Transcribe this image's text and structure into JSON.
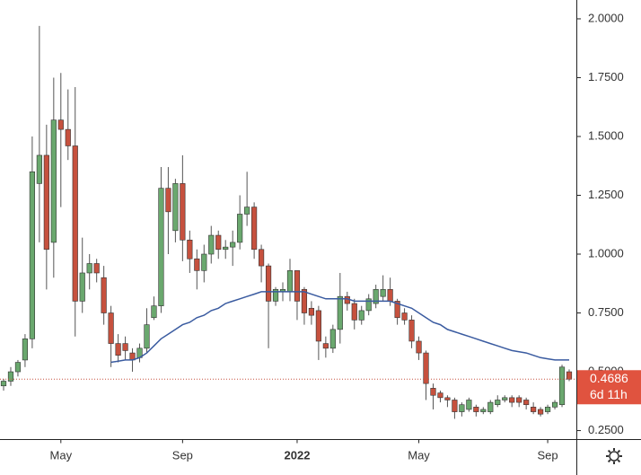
{
  "chart_data": {
    "type": "candlestick",
    "categories": [
      null,
      null,
      null,
      null,
      null,
      null,
      null,
      null,
      "May",
      null,
      null,
      null,
      null,
      null,
      null,
      null,
      null,
      null,
      null,
      null,
      null,
      null,
      null,
      null,
      null,
      "Sep",
      null,
      null,
      null,
      null,
      null,
      null,
      null,
      null,
      null,
      null,
      null,
      null,
      null,
      null,
      null,
      "2022",
      null,
      null,
      null,
      null,
      null,
      null,
      null,
      null,
      null,
      null,
      null,
      null,
      null,
      null,
      null,
      null,
      "May",
      null,
      null,
      null,
      null,
      null,
      null,
      null,
      null,
      null,
      null,
      null,
      null,
      null,
      null,
      null,
      null,
      null,
      "Sep",
      null,
      null,
      null
    ],
    "open": [
      0.44,
      0.46,
      0.5,
      0.55,
      0.64,
      1.3,
      1.42,
      1.05,
      1.57,
      1.53,
      1.46,
      0.8,
      0.92,
      0.96,
      0.9,
      0.75,
      0.62,
      0.62,
      0.58,
      0.56,
      0.6,
      0.73,
      0.78,
      1.28,
      1.1,
      1.3,
      1.06,
      0.98,
      0.93,
      1.0,
      1.08,
      1.02,
      1.03,
      1.05,
      1.17,
      1.2,
      1.02,
      0.95,
      0.8,
      0.84,
      0.84,
      0.93,
      0.85,
      0.77,
      0.76,
      0.62,
      0.6,
      0.68,
      0.82,
      0.79,
      0.72,
      0.76,
      0.79,
      0.82,
      0.85,
      0.8,
      0.75,
      0.72,
      0.63,
      0.58,
      0.43,
      0.41,
      0.39,
      0.38,
      0.33,
      0.34,
      0.35,
      0.33,
      0.33,
      0.36,
      0.38,
      0.39,
      0.39,
      0.38,
      0.35,
      0.34,
      0.33,
      0.35,
      0.36,
      0.5
    ],
    "high": [
      0.47,
      0.52,
      0.55,
      0.66,
      1.5,
      1.97,
      1.55,
      1.75,
      1.77,
      1.7,
      1.71,
      1.07,
      1.0,
      0.98,
      0.95,
      0.78,
      0.66,
      0.65,
      0.6,
      0.62,
      0.77,
      0.82,
      1.37,
      1.37,
      1.32,
      1.42,
      1.1,
      1.02,
      1.04,
      1.12,
      1.1,
      1.06,
      1.1,
      1.25,
      1.35,
      1.22,
      1.04,
      0.96,
      0.86,
      0.88,
      0.98,
      0.93,
      0.86,
      0.8,
      0.78,
      0.65,
      0.7,
      0.92,
      0.84,
      0.81,
      0.78,
      0.83,
      0.87,
      0.91,
      0.9,
      0.81,
      0.77,
      0.74,
      0.65,
      0.59,
      0.45,
      0.42,
      0.4,
      0.39,
      0.37,
      0.39,
      0.36,
      0.35,
      0.38,
      0.4,
      0.4,
      0.4,
      0.4,
      0.39,
      0.37,
      0.35,
      0.36,
      0.38,
      0.53,
      0.51
    ],
    "low": [
      0.42,
      0.44,
      0.48,
      0.52,
      0.6,
      1.05,
      0.85,
      0.9,
      1.2,
      1.4,
      0.65,
      0.75,
      0.85,
      0.88,
      0.7,
      0.52,
      0.54,
      0.55,
      0.5,
      0.54,
      0.58,
      0.72,
      0.75,
      1.0,
      1.05,
      0.97,
      0.92,
      0.85,
      0.88,
      0.96,
      0.98,
      0.98,
      0.95,
      1.02,
      1.12,
      0.98,
      0.88,
      0.6,
      0.78,
      0.8,
      0.8,
      0.72,
      0.7,
      0.7,
      0.55,
      0.56,
      0.58,
      0.62,
      0.76,
      0.68,
      0.7,
      0.74,
      0.77,
      0.8,
      0.78,
      0.7,
      0.7,
      0.6,
      0.55,
      0.38,
      0.34,
      0.37,
      0.35,
      0.3,
      0.31,
      0.33,
      0.31,
      0.32,
      0.32,
      0.35,
      0.37,
      0.35,
      0.35,
      0.34,
      0.32,
      0.31,
      0.32,
      0.34,
      0.35,
      0.46
    ],
    "close": [
      0.46,
      0.5,
      0.54,
      0.64,
      1.35,
      1.42,
      1.02,
      1.57,
      1.53,
      1.46,
      0.8,
      0.92,
      0.96,
      0.92,
      0.75,
      0.62,
      0.57,
      0.59,
      0.55,
      0.6,
      0.7,
      0.78,
      1.28,
      1.18,
      1.3,
      1.06,
      0.98,
      0.93,
      1.0,
      1.08,
      1.02,
      1.03,
      1.05,
      1.17,
      1.2,
      1.02,
      0.95,
      0.8,
      0.85,
      0.85,
      0.93,
      0.8,
      0.75,
      0.74,
      0.63,
      0.6,
      0.68,
      0.82,
      0.79,
      0.72,
      0.76,
      0.81,
      0.85,
      0.85,
      0.8,
      0.73,
      0.72,
      0.63,
      0.58,
      0.45,
      0.4,
      0.39,
      0.38,
      0.33,
      0.36,
      0.38,
      0.33,
      0.34,
      0.37,
      0.38,
      0.39,
      0.37,
      0.37,
      0.36,
      0.33,
      0.32,
      0.35,
      0.37,
      0.52,
      0.4686
    ],
    "up_color": "#6aa86e",
    "down_color": "#c6513e",
    "moving_average": {
      "color": "#3a5ba0",
      "values": [
        null,
        null,
        null,
        null,
        null,
        null,
        null,
        null,
        null,
        null,
        null,
        null,
        null,
        null,
        null,
        0.54,
        0.545,
        0.55,
        0.55,
        0.56,
        0.58,
        0.61,
        0.64,
        0.66,
        0.68,
        0.7,
        0.71,
        0.73,
        0.74,
        0.76,
        0.77,
        0.79,
        0.8,
        0.81,
        0.82,
        0.83,
        0.84,
        0.84,
        0.84,
        0.84,
        0.84,
        0.84,
        0.84,
        0.83,
        0.82,
        0.81,
        0.81,
        0.81,
        0.81,
        0.8,
        0.8,
        0.8,
        0.8,
        0.8,
        0.8,
        0.79,
        0.78,
        0.77,
        0.75,
        0.73,
        0.71,
        0.7,
        0.68,
        0.67,
        0.66,
        0.65,
        0.64,
        0.63,
        0.62,
        0.61,
        0.6,
        0.59,
        0.585,
        0.58,
        0.57,
        0.56,
        0.555,
        0.55,
        0.55,
        0.55
      ]
    },
    "countdown": "6d 11h",
    "ylim": [
      0.212,
      2.08
    ],
    "yticks": [
      {
        "value": 0.25,
        "label": "0.2500"
      },
      {
        "value": 0.5,
        "label": "0.5000"
      },
      {
        "value": 0.75,
        "label": "0.7500"
      },
      {
        "value": 1,
        "label": "1.0000"
      },
      {
        "value": 1.25,
        "label": "1.2500"
      },
      {
        "value": 1.5,
        "label": "1.5000"
      },
      {
        "value": 1.75,
        "label": "1.7500"
      },
      {
        "value": 2,
        "label": "2.0000"
      }
    ],
    "grid": false
  }
}
